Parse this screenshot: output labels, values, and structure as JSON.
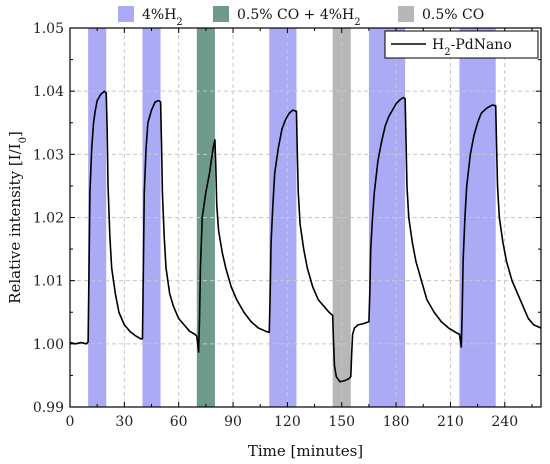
{
  "chart_data": {
    "type": "line",
    "xlabel": "Time [minutes]",
    "ylabel": "Relative intensity [I/I",
    "ylabel_sub": "0",
    "ylabel_tail": "]",
    "xlim": [
      0,
      260
    ],
    "ylim": [
      0.99,
      1.05
    ],
    "xticks": [
      0,
      30,
      60,
      90,
      120,
      150,
      180,
      210,
      240
    ],
    "yticks": [
      0.99,
      1.0,
      1.01,
      1.02,
      1.03,
      1.04,
      1.05
    ],
    "ytick_labels": [
      "0.99",
      "1.00",
      "1.01",
      "1.02",
      "1.03",
      "1.04",
      "1.05"
    ],
    "grid": true,
    "exposure_legend": [
      {
        "name_main": "4%H",
        "name_sub": "2",
        "name_tail": "",
        "color": "#aaaaf5"
      },
      {
        "name_main": "0.5% CO + 4%H",
        "name_sub": "2",
        "name_tail": "",
        "color": "#6f9b8e"
      },
      {
        "name_main": "0.5% CO",
        "name_sub": "",
        "name_tail": "",
        "color": "#b7b7b7"
      }
    ],
    "exposures": [
      {
        "gas": 0,
        "start": 10,
        "end": 20
      },
      {
        "gas": 0,
        "start": 40,
        "end": 50
      },
      {
        "gas": 1,
        "start": 70,
        "end": 80
      },
      {
        "gas": 0,
        "start": 110,
        "end": 125
      },
      {
        "gas": 2,
        "start": 145,
        "end": 155
      },
      {
        "gas": 0,
        "start": 165,
        "end": 185
      },
      {
        "gas": 0,
        "start": 215,
        "end": 235
      }
    ],
    "series": [
      {
        "name_main": "H",
        "name_sub": "2",
        "name_tail": "-PdNano",
        "color": "#000000",
        "legend_position": "top-right",
        "points": [
          [
            0,
            1.0002
          ],
          [
            3,
            1.0
          ],
          [
            6,
            1.0002
          ],
          [
            9,
            1.0
          ],
          [
            10,
            1.0003
          ],
          [
            10.5,
            1.012
          ],
          [
            11,
            1.024
          ],
          [
            12,
            1.031
          ],
          [
            13,
            1.035
          ],
          [
            14,
            1.037
          ],
          [
            15,
            1.0385
          ],
          [
            17,
            1.0395
          ],
          [
            19,
            1.04
          ],
          [
            20,
            1.0397
          ],
          [
            20.5,
            1.034
          ],
          [
            21,
            1.025
          ],
          [
            22,
            1.017
          ],
          [
            23,
            1.012
          ],
          [
            25,
            1.008
          ],
          [
            27,
            1.005
          ],
          [
            30,
            1.003
          ],
          [
            33,
            1.002
          ],
          [
            36,
            1.0013
          ],
          [
            39,
            1.0008
          ],
          [
            40,
            1.0008
          ],
          [
            40.5,
            1.012
          ],
          [
            41,
            1.024
          ],
          [
            42,
            1.031
          ],
          [
            43,
            1.035
          ],
          [
            45,
            1.037
          ],
          [
            47,
            1.0383
          ],
          [
            49,
            1.0385
          ],
          [
            50,
            1.0383
          ],
          [
            50.5,
            1.032
          ],
          [
            51,
            1.024
          ],
          [
            52,
            1.017
          ],
          [
            53,
            1.012
          ],
          [
            55,
            1.008
          ],
          [
            57,
            1.006
          ],
          [
            60,
            1.004
          ],
          [
            63,
            1.003
          ],
          [
            66,
            1.002
          ],
          [
            69,
            1.0015
          ],
          [
            70,
            1.0012
          ],
          [
            70.5,
            1.0
          ],
          [
            71,
            0.9987
          ],
          [
            71.5,
            1.004
          ],
          [
            72,
            1.012
          ],
          [
            73,
            1.02
          ],
          [
            75,
            1.024
          ],
          [
            77,
            1.027
          ],
          [
            78,
            1.029
          ],
          [
            79,
            1.031
          ],
          [
            80,
            1.0323
          ],
          [
            80.5,
            1.028
          ],
          [
            81,
            1.022
          ],
          [
            82,
            1.018
          ],
          [
            84,
            1.0145
          ],
          [
            86,
            1.012
          ],
          [
            89,
            1.009
          ],
          [
            92,
            1.007
          ],
          [
            96,
            1.005
          ],
          [
            100,
            1.0035
          ],
          [
            104,
            1.0025
          ],
          [
            108,
            1.002
          ],
          [
            110,
            1.0018
          ],
          [
            110.5,
            1.008
          ],
          [
            111,
            1.016
          ],
          [
            112,
            1.022
          ],
          [
            113,
            1.027
          ],
          [
            115,
            1.031
          ],
          [
            117,
            1.034
          ],
          [
            119,
            1.0355
          ],
          [
            121,
            1.0365
          ],
          [
            123,
            1.037
          ],
          [
            125,
            1.0368
          ],
          [
            125.5,
            1.03
          ],
          [
            126,
            1.024
          ],
          [
            127,
            1.019
          ],
          [
            129,
            1.015
          ],
          [
            131,
            1.012
          ],
          [
            134,
            1.009
          ],
          [
            137,
            1.007
          ],
          [
            140,
            1.006
          ],
          [
            143,
            1.005
          ],
          [
            145,
            1.0045
          ],
          [
            145.5,
            1.0
          ],
          [
            146,
            0.9965
          ],
          [
            147,
            0.9948
          ],
          [
            149,
            0.994
          ],
          [
            152,
            0.9942
          ],
          [
            154,
            0.9945
          ],
          [
            155,
            0.9948
          ],
          [
            155.5,
            0.9985
          ],
          [
            156,
            1.0015
          ],
          [
            157,
            1.0025
          ],
          [
            159,
            1.003
          ],
          [
            162,
            1.0032
          ],
          [
            165,
            1.0035
          ],
          [
            165.5,
            1.008
          ],
          [
            166,
            1.015
          ],
          [
            167,
            1.02
          ],
          [
            168,
            1.024
          ],
          [
            170,
            1.029
          ],
          [
            172,
            1.032
          ],
          [
            174,
            1.0345
          ],
          [
            176,
            1.036
          ],
          [
            178,
            1.037
          ],
          [
            180,
            1.038
          ],
          [
            182,
            1.0386
          ],
          [
            184,
            1.039
          ],
          [
            185,
            1.0388
          ],
          [
            185.5,
            1.032
          ],
          [
            186,
            1.025
          ],
          [
            187,
            1.02
          ],
          [
            189,
            1.016
          ],
          [
            191,
            1.013
          ],
          [
            194,
            1.01
          ],
          [
            197,
            1.007
          ],
          [
            201,
            1.005
          ],
          [
            205,
            1.0035
          ],
          [
            209,
            1.0025
          ],
          [
            213,
            1.0018
          ],
          [
            215,
            1.0015
          ],
          [
            215.5,
            1.0005
          ],
          [
            216,
            0.9995
          ],
          [
            216.5,
            1.005
          ],
          [
            217,
            1.013
          ],
          [
            218,
            1.02
          ],
          [
            219,
            1.025
          ],
          [
            221,
            1.03
          ],
          [
            223,
            1.033
          ],
          [
            225,
            1.035
          ],
          [
            227,
            1.0365
          ],
          [
            230,
            1.0373
          ],
          [
            233,
            1.0378
          ],
          [
            235,
            1.0377
          ],
          [
            235.5,
            1.031
          ],
          [
            236,
            1.025
          ],
          [
            237,
            1.02
          ],
          [
            239,
            1.016
          ],
          [
            241,
            1.013
          ],
          [
            244,
            1.01
          ],
          [
            247,
            1.008
          ],
          [
            250,
            1.006
          ],
          [
            253,
            1.004
          ],
          [
            256,
            1.003
          ],
          [
            260,
            1.0025
          ]
        ]
      }
    ]
  }
}
